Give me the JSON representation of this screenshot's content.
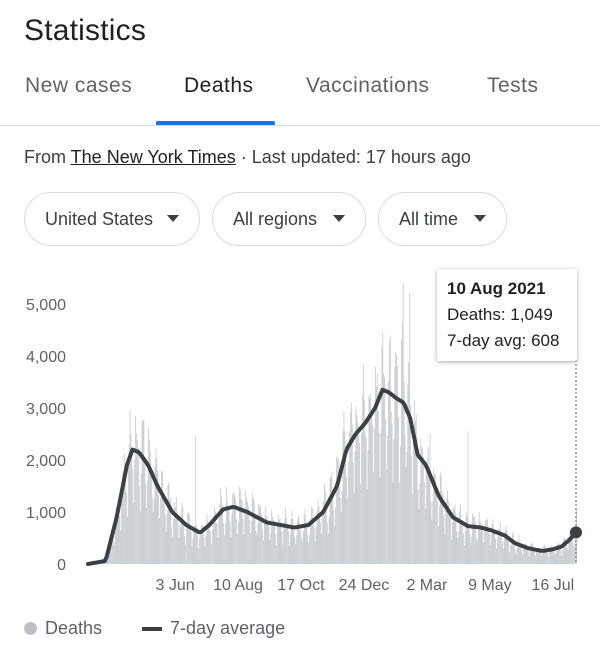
{
  "page": {
    "title": "Statistics"
  },
  "tabs": [
    {
      "label": "New cases",
      "active": false
    },
    {
      "label": "Deaths",
      "active": true
    },
    {
      "label": "Vaccinations",
      "active": false
    },
    {
      "label": "Tests",
      "active": false
    }
  ],
  "source": {
    "prefix": "From ",
    "link_text": "The New York Times",
    "suffix": " · Last updated: 17 hours ago"
  },
  "filters": [
    {
      "label": "United States",
      "icon": "chevron-down-icon"
    },
    {
      "label": "All regions",
      "icon": "chevron-down-icon"
    },
    {
      "label": "All time",
      "icon": "chevron-down-icon"
    }
  ],
  "tooltip": {
    "date": "10 Aug 2021",
    "deaths": "Deaths: 1,049",
    "avg": "7-day avg: 608"
  },
  "legend": {
    "deaths_label": "Deaths",
    "avg_label": "7-day average"
  },
  "colors": {
    "bars": "#bdc1c6",
    "line": "#3c4043",
    "accent": "#1a73e8"
  },
  "chart_data": {
    "type": "bar",
    "title": "",
    "xlabel": "",
    "ylabel": "",
    "ylim": [
      0,
      5000
    ],
    "yticks": [
      "0",
      "1,000",
      "2,000",
      "3,000",
      "4,000",
      "5,000"
    ],
    "xticks": [
      "3 Jun",
      "10 Aug",
      "17 Oct",
      "24 Dec",
      "2 Mar",
      "9 May",
      "16 Jul"
    ],
    "x_start": "2020-03-01",
    "x_end": "2021-08-10",
    "series": [
      {
        "name": "Deaths",
        "kind": "bars",
        "note": "daily deaths, spiky; peaks ~5,400 in Feb 2021"
      },
      {
        "name": "7-day average",
        "kind": "line",
        "points": [
          [
            "2020-03-01",
            0
          ],
          [
            "2020-03-20",
            60
          ],
          [
            "2020-04-01",
            900
          ],
          [
            "2020-04-12",
            1900
          ],
          [
            "2020-04-18",
            2200
          ],
          [
            "2020-04-25",
            2150
          ],
          [
            "2020-05-05",
            1900
          ],
          [
            "2020-05-15",
            1500
          ],
          [
            "2020-05-31",
            1000
          ],
          [
            "2020-06-15",
            750
          ],
          [
            "2020-06-30",
            600
          ],
          [
            "2020-07-10",
            750
          ],
          [
            "2020-07-25",
            1050
          ],
          [
            "2020-08-05",
            1100
          ],
          [
            "2020-08-20",
            1000
          ],
          [
            "2020-09-10",
            800
          ],
          [
            "2020-09-25",
            750
          ],
          [
            "2020-10-10",
            700
          ],
          [
            "2020-10-25",
            750
          ],
          [
            "2020-11-10",
            1000
          ],
          [
            "2020-11-25",
            1500
          ],
          [
            "2020-12-05",
            2200
          ],
          [
            "2020-12-15",
            2500
          ],
          [
            "2020-12-25",
            2700
          ],
          [
            "2021-01-05",
            3000
          ],
          [
            "2021-01-13",
            3350
          ],
          [
            "2021-01-20",
            3300
          ],
          [
            "2021-01-27",
            3200
          ],
          [
            "2021-02-05",
            3100
          ],
          [
            "2021-02-12",
            2800
          ],
          [
            "2021-02-20",
            2100
          ],
          [
            "2021-03-01",
            1900
          ],
          [
            "2021-03-15",
            1300
          ],
          [
            "2021-03-30",
            900
          ],
          [
            "2021-04-15",
            730
          ],
          [
            "2021-04-30",
            700
          ],
          [
            "2021-05-10",
            650
          ],
          [
            "2021-05-25",
            550
          ],
          [
            "2021-06-05",
            400
          ],
          [
            "2021-06-20",
            300
          ],
          [
            "2021-07-05",
            250
          ],
          [
            "2021-07-15",
            280
          ],
          [
            "2021-07-25",
            330
          ],
          [
            "2021-08-02",
            450
          ],
          [
            "2021-08-10",
            608
          ]
        ]
      }
    ],
    "highlight": {
      "date": "2021-08-10",
      "deaths": 1049,
      "avg": 608
    },
    "grid": false,
    "legend_position": "bottom-left"
  }
}
